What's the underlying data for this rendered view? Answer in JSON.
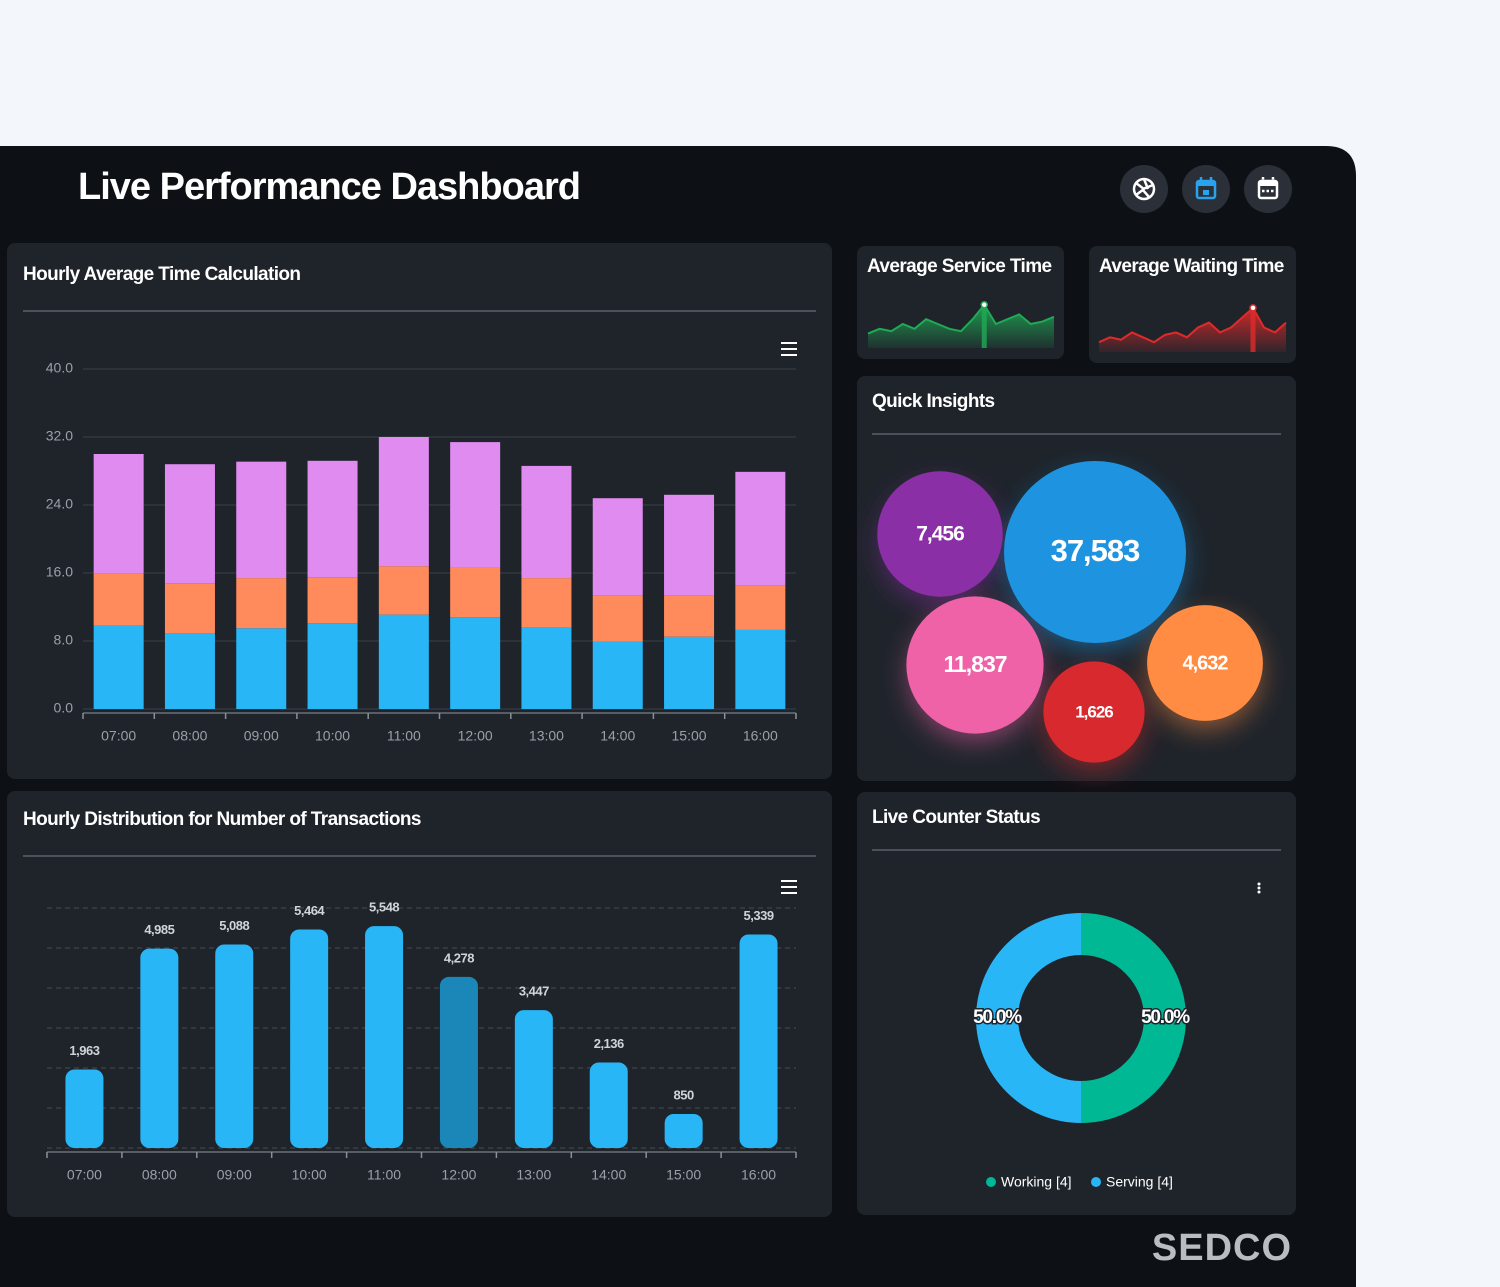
{
  "header": {
    "title": "Live Performance Dashboard"
  },
  "brand": "SEDCO",
  "chart_data": [
    {
      "type": "bar",
      "stacked": true,
      "title": "Hourly Average Time Calculation",
      "categories": [
        "07:00",
        "08:00",
        "09:00",
        "10:00",
        "11:00",
        "12:00",
        "13:00",
        "14:00",
        "15:00",
        "16:00"
      ],
      "series": [
        {
          "color": "#29b6f6",
          "values": [
            9.8,
            8.9,
            9.5,
            10.1,
            11.1,
            10.8,
            9.6,
            7.9,
            8.5,
            9.3
          ]
        },
        {
          "color": "#ff8a5c",
          "values": [
            6.1,
            5.9,
            5.9,
            5.4,
            5.7,
            5.8,
            5.8,
            5.5,
            4.9,
            5.2
          ]
        },
        {
          "color": "#df8bf0",
          "values": [
            14.1,
            14.0,
            13.7,
            13.7,
            15.2,
            14.8,
            13.2,
            11.4,
            11.8,
            13.4
          ]
        }
      ],
      "ylim": [
        0,
        40
      ],
      "yticks": [
        {
          "value": 0,
          "label": "0.0"
        },
        {
          "value": 8,
          "label": "8.0"
        },
        {
          "value": 16,
          "label": "16.0"
        },
        {
          "value": 24,
          "label": "24.0"
        },
        {
          "value": 32,
          "label": "32.0"
        },
        {
          "value": 40,
          "label": "40.0"
        }
      ],
      "grid": "solid"
    },
    {
      "type": "bar",
      "title": "Hourly Distribution for Number of Transactions",
      "categories": [
        "07:00",
        "08:00",
        "09:00",
        "10:00",
        "11:00",
        "12:00",
        "13:00",
        "14:00",
        "15:00",
        "16:00"
      ],
      "values": [
        1963,
        4985,
        5088,
        5464,
        5548,
        4278,
        3447,
        2136,
        850,
        5339
      ],
      "value_labels": [
        "1,963",
        "4,985",
        "5,088",
        "5,464",
        "5,548",
        "4,278",
        "3,447",
        "2,136",
        "850",
        "5,339"
      ],
      "colors": [
        "#29b6f6",
        "#29b6f6",
        "#29b6f6",
        "#29b6f6",
        "#29b6f6",
        "#1a87b8",
        "#29b6f6",
        "#29b6f6",
        "#29b6f6",
        "#29b6f6"
      ],
      "ylim": [
        0,
        6000
      ],
      "yticks": [
        0,
        1000,
        2000,
        3000,
        4000,
        5000,
        6000
      ],
      "y_axis_labels": false,
      "grid": "dashed"
    },
    {
      "type": "area",
      "title": "Average Service Time",
      "values": [
        3,
        4,
        3.5,
        5,
        4,
        6,
        5,
        4,
        3.5,
        6,
        9,
        5,
        6,
        7,
        5,
        5.5,
        6.5
      ],
      "color": "#1faa55",
      "ylim": [
        0,
        10
      ]
    },
    {
      "type": "area",
      "title": "Average Waiting Time",
      "values": [
        2,
        3,
        2.5,
        4,
        3,
        2,
        3.5,
        4,
        3,
        5,
        6,
        4,
        5,
        7,
        9,
        5,
        4,
        6
      ],
      "color": "#e02a2a",
      "ylim": [
        0,
        10
      ]
    },
    {
      "type": "bubble",
      "title": "Quick Insights",
      "values": [
        7456,
        37583,
        11837,
        1626,
        4632
      ],
      "value_labels": [
        "7,456",
        "37,583",
        "11,837",
        "1,626",
        "4,632"
      ],
      "colors": [
        "#8a2fa6",
        "#1e94e0",
        "#f062a8",
        "#d8292e",
        "#ff8c42"
      ]
    },
    {
      "type": "donut",
      "title": "Live Counter Status",
      "categories": [
        "Working [4]",
        "Serving [4]"
      ],
      "values": [
        50.0,
        50.0
      ],
      "value_labels": [
        "50.0%",
        "50.0%"
      ],
      "colors": [
        "#00b894",
        "#29b6f6"
      ]
    }
  ]
}
